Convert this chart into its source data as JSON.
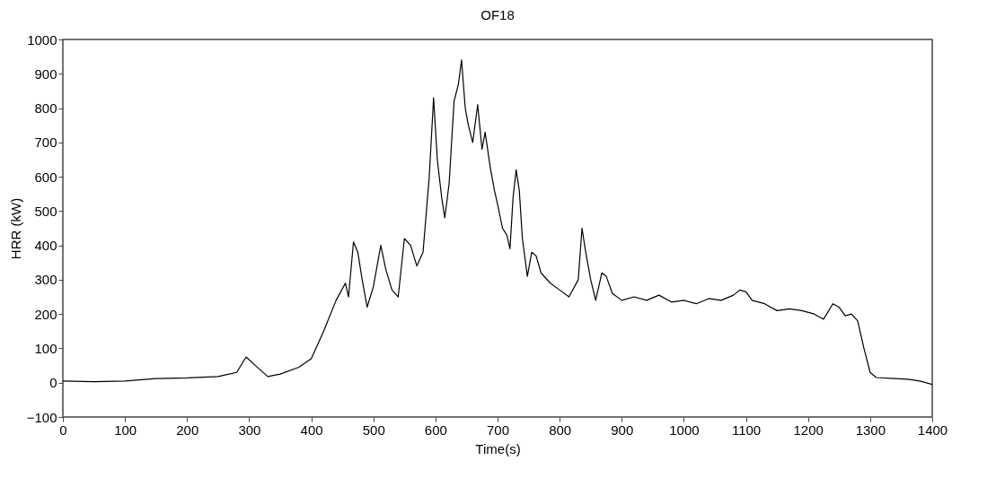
{
  "chart_data": {
    "type": "line",
    "title": "OF18",
    "xlabel": "Time(s)",
    "ylabel": "HRR (kW)",
    "xlim": [
      0,
      1400
    ],
    "ylim": [
      -100,
      1000
    ],
    "xticks": [
      0,
      100,
      200,
      300,
      400,
      500,
      600,
      700,
      800,
      900,
      1000,
      1100,
      1200,
      1300,
      1400
    ],
    "yticks": [
      -100,
      0,
      100,
      200,
      300,
      400,
      500,
      600,
      700,
      800,
      900,
      1000
    ],
    "grid": false,
    "marker": "none",
    "line_style": "solid",
    "series": [
      {
        "color": "#000000",
        "x": [
          0,
          50,
          100,
          150,
          200,
          250,
          280,
          295,
          310,
          330,
          350,
          380,
          400,
          420,
          440,
          455,
          460,
          468,
          475,
          482,
          490,
          500,
          512,
          520,
          530,
          540,
          550,
          560,
          570,
          580,
          590,
          597,
          603,
          610,
          615,
          622,
          630,
          637,
          642,
          648,
          653,
          660,
          668,
          675,
          680,
          688,
          695,
          700,
          708,
          715,
          720,
          725,
          730,
          735,
          740,
          748,
          755,
          762,
          770,
          785,
          800,
          815,
          830,
          836,
          842,
          850,
          858,
          868,
          875,
          885,
          900,
          920,
          940,
          960,
          980,
          1000,
          1020,
          1040,
          1060,
          1080,
          1090,
          1100,
          1110,
          1130,
          1150,
          1170,
          1190,
          1210,
          1225,
          1240,
          1250,
          1260,
          1270,
          1280,
          1290,
          1300,
          1310,
          1340,
          1360,
          1380,
          1400
        ],
        "values": [
          5,
          3,
          5,
          12,
          14,
          18,
          30,
          75,
          50,
          18,
          25,
          45,
          70,
          150,
          240,
          290,
          250,
          410,
          380,
          300,
          220,
          280,
          400,
          330,
          270,
          250,
          420,
          400,
          340,
          380,
          600,
          830,
          650,
          540,
          480,
          580,
          820,
          870,
          940,
          800,
          750,
          700,
          810,
          680,
          730,
          630,
          560,
          520,
          450,
          430,
          390,
          540,
          620,
          560,
          420,
          310,
          380,
          370,
          320,
          290,
          270,
          250,
          300,
          450,
          380,
          300,
          240,
          320,
          310,
          260,
          240,
          250,
          240,
          255,
          235,
          240,
          230,
          245,
          240,
          255,
          270,
          265,
          240,
          230,
          210,
          215,
          210,
          200,
          185,
          230,
          220,
          195,
          200,
          180,
          100,
          30,
          15,
          12,
          10,
          5,
          -5
        ]
      }
    ]
  }
}
